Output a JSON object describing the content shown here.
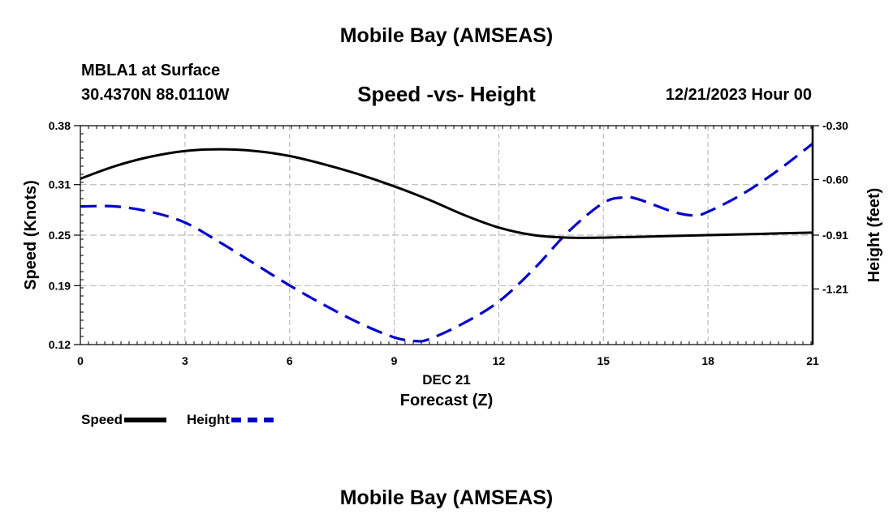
{
  "header": {
    "title": "Mobile Bay (AMSEAS)",
    "station": "MBLA1 at Surface",
    "coords": "30.4370N  88.0110W",
    "chart_title": "Speed -vs- Height",
    "datetime": "12/21/2023 Hour 00"
  },
  "footer": {
    "title": "Mobile Bay (AMSEAS)"
  },
  "colors": {
    "speed": "#000000",
    "height": "#0000cc",
    "grid": "#bbbbbb"
  },
  "chart_data": {
    "type": "line",
    "title": "Speed -vs- Height",
    "xlabel": "Forecast (Z)",
    "xlabel_date": "DEC 21",
    "ylabel": "Speed (Knots)",
    "y2label": "Height (feet)",
    "xlim": [
      0,
      21
    ],
    "ylim": [
      0.12,
      0.38
    ],
    "y2lim": [
      -1.52,
      -0.3
    ],
    "x_ticks": [
      "0",
      "3",
      "6",
      "9",
      "12",
      "15",
      "18",
      "21"
    ],
    "y_ticks": [
      "0.12",
      "0.19",
      "0.25",
      "0.31",
      "0.38"
    ],
    "y2_ticks": [
      "-0.30",
      "-0.60",
      "-0.91",
      "-1.21"
    ],
    "y2_tick_values": [
      -0.3,
      -0.6,
      -0.91,
      -1.21
    ],
    "grid": true,
    "legend_placement": "bottom-left",
    "series": [
      {
        "name": "Speed",
        "axis": "left",
        "style": "solid",
        "x": [
          0,
          1,
          2,
          3,
          4,
          5,
          6,
          7,
          8,
          9,
          10,
          11,
          12,
          13,
          14,
          15,
          16,
          17,
          18,
          19,
          20,
          21
        ],
        "values": [
          0.317,
          0.332,
          0.343,
          0.35,
          0.352,
          0.35,
          0.344,
          0.334,
          0.322,
          0.308,
          0.292,
          0.274,
          0.259,
          0.25,
          0.247,
          0.247,
          0.248,
          0.249,
          0.25,
          0.251,
          0.252,
          0.253
        ]
      },
      {
        "name": "Height",
        "axis": "right",
        "style": "dashed",
        "x": [
          0,
          1,
          2,
          3,
          4,
          5,
          6,
          7,
          8,
          9,
          9.6,
          10,
          11,
          12,
          13,
          14,
          15,
          15.6,
          16,
          17,
          17.6,
          18,
          19,
          20,
          21
        ],
        "values": [
          -0.75,
          -0.75,
          -0.78,
          -0.84,
          -0.95,
          -1.07,
          -1.19,
          -1.3,
          -1.4,
          -1.48,
          -1.5,
          -1.49,
          -1.4,
          -1.28,
          -1.1,
          -0.89,
          -0.73,
          -0.7,
          -0.71,
          -0.78,
          -0.8,
          -0.78,
          -0.68,
          -0.55,
          -0.4
        ]
      }
    ]
  }
}
